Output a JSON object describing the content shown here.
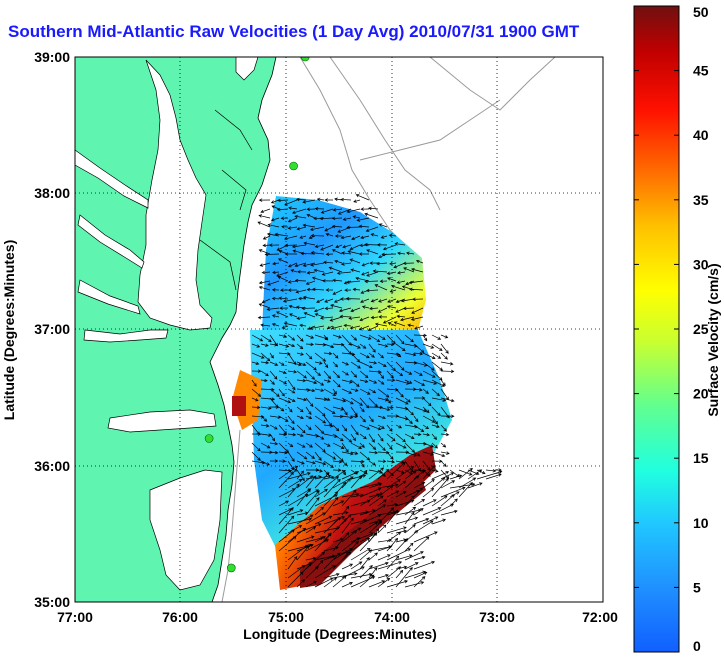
{
  "title": "Southern Mid-Atlantic Raw Velocities (1 Day Avg) 2010/07/31 1900 GMT",
  "map": {
    "x_axis": {
      "label": "Longitude (Degrees:Minutes)",
      "ticks": [
        "77:00",
        "76:00",
        "75:00",
        "74:00",
        "73:00",
        "72:00"
      ]
    },
    "y_axis": {
      "label": "Latitude (Degrees:Minutes)",
      "ticks": [
        "39:00",
        "38:00",
        "37:00",
        "36:00",
        "35:00"
      ]
    },
    "lon_range": [
      -77,
      -72
    ],
    "lat_range": [
      35,
      39
    ],
    "grid": "dotted",
    "land_color": "#5ff5b0",
    "water_color": "#ffffff",
    "vector_color": "#000000",
    "stations": [
      {
        "lon": -74.82,
        "lat": 39.0
      },
      {
        "lon": -74.93,
        "lat": 38.2
      },
      {
        "lon": -75.73,
        "lat": 36.2
      },
      {
        "lon": -75.52,
        "lat": 35.25
      }
    ]
  },
  "colorbar": {
    "label": "Surface Velocity (cm/s)",
    "min": 0,
    "max": 50,
    "ticks": [
      "0",
      "5",
      "10",
      "15",
      "20",
      "25",
      "30",
      "35",
      "40",
      "45",
      "50"
    ],
    "colors": [
      "#1060ff",
      "#2090ff",
      "#20c8ff",
      "#20ffe0",
      "#60ff90",
      "#c8ff30",
      "#ffff00",
      "#ffc000",
      "#ff7000",
      "#ff1000",
      "#c00000",
      "#701010"
    ]
  }
}
